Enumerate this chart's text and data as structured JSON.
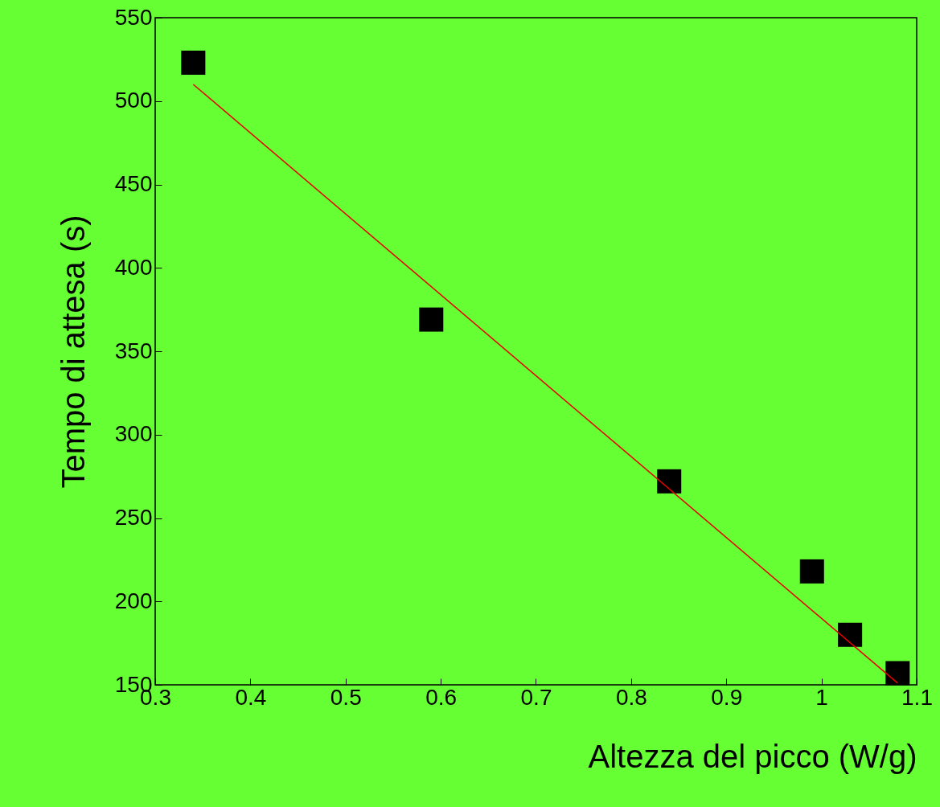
{
  "chart_data": {
    "type": "scatter",
    "xlabel": "Altezza del picco (W/g)",
    "ylabel": "Tempo di attesa (s)",
    "xlim": [
      0.3,
      1.1
    ],
    "xticks": [
      0.3,
      0.4,
      0.5,
      0.6,
      0.7,
      0.8,
      0.9,
      1,
      1.1
    ],
    "ylim": [
      150,
      550
    ],
    "yticks": [
      150,
      200,
      250,
      300,
      350,
      400,
      450,
      500,
      550
    ],
    "grid": false,
    "series": [
      {
        "marker": "square",
        "color": "#000000",
        "x": [
          0.34,
          0.59,
          0.84,
          0.99,
          1.03,
          1.08
        ],
        "values": [
          523,
          369,
          272,
          218,
          180,
          157
        ]
      },
      {
        "type": "line",
        "color": "#e60000",
        "line_style": "solid",
        "x": [
          0.34,
          1.08
        ],
        "values": [
          510,
          151
        ]
      }
    ]
  }
}
